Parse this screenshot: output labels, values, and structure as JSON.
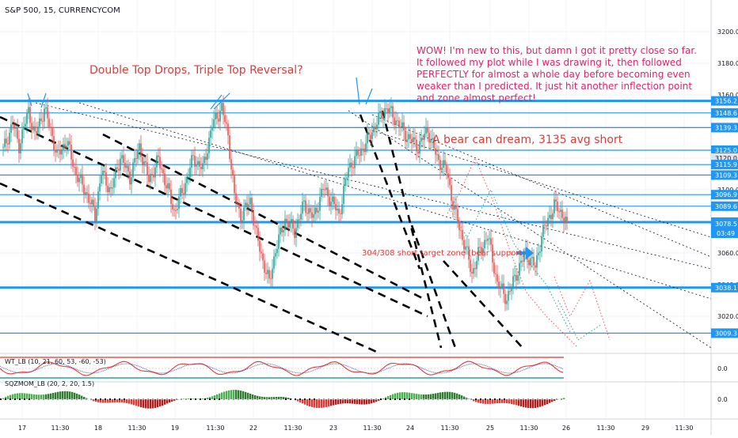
{
  "header": {
    "symbol": "S&P 500, 15, CURRENCYCOM"
  },
  "annotations": {
    "left_title": "Double Top Drops, Triple Top Reversal?",
    "right_comment_lines": [
      "WOW! I'm new to this, but damn I got it pretty close so far.",
      " It followed my plot while I was drawing it, then followed",
      "PERFECTLY for almost a whole day before becoming even",
      "weaker than I predicted. It just hit another inflection point",
      "and zone almost perfect!"
    ],
    "bear_dream": "A bear can dream, 3135 avg short",
    "target_zone": "304/308 short target zone (bear support)"
  },
  "colors": {
    "level_line": "#2196f3",
    "annotation_red": "#e53935",
    "annotation_pink": "#e91e63",
    "candle_up": "#26a69a",
    "candle_down": "#ef5350",
    "label_blue": "#2196f3",
    "label_dark": "#131722"
  },
  "chart_data": [
    {
      "type": "candlestick",
      "title": "S&P 500, 15, CURRENCYCOM",
      "ylim": [
        3005,
        3215
      ],
      "y_ticks": [
        3020.0,
        3040.0,
        3060.0,
        3080.0,
        3100.0,
        3120.0,
        3140.0,
        3160.0,
        3180.0,
        3200.0
      ],
      "x_tick_labels": [
        "17",
        "11:30",
        "18",
        "11:30",
        "19",
        "11:30",
        "22",
        "11:30",
        "23",
        "11:30",
        "24",
        "11:30",
        "25",
        "11:30",
        "26",
        "11:30",
        "29",
        "11:30"
      ],
      "horizontal_levels": [
        3156.2,
        3148.6,
        3139.3,
        3125.0,
        3115.9,
        3109.3,
        3096.9,
        3089.6,
        3079.5,
        3038.1,
        3009.3
      ],
      "thick_levels": [
        3156.2,
        3079.5,
        3038.1
      ],
      "price_label_values": [
        3156.2,
        3148.6,
        3139.3,
        3125.0,
        3120.0,
        3115.9,
        3109.3,
        3096.9,
        3089.6,
        3079.5,
        3078.5,
        3038.1,
        3009.3
      ],
      "current_price": 3079.5,
      "countdown": "03:49",
      "close_path": [
        [
          0,
          3125
        ],
        [
          6,
          3142
        ],
        [
          10,
          3128
        ],
        [
          16,
          3150
        ],
        [
          20,
          3134
        ],
        [
          26,
          3151
        ],
        [
          30,
          3138
        ],
        [
          34,
          3121
        ],
        [
          40,
          3131
        ],
        [
          46,
          3110
        ],
        [
          52,
          3099
        ],
        [
          58,
          3084
        ],
        [
          62,
          3111
        ],
        [
          68,
          3099
        ],
        [
          74,
          3121
        ],
        [
          80,
          3108
        ],
        [
          86,
          3127
        ],
        [
          92,
          3106
        ],
        [
          98,
          3119
        ],
        [
          104,
          3100
        ],
        [
          108,
          3086
        ],
        [
          114,
          3101
        ],
        [
          120,
          3120
        ],
        [
          126,
          3113
        ],
        [
          132,
          3141
        ],
        [
          138,
          3152
        ],
        [
          142,
          3134
        ],
        [
          146,
          3096
        ],
        [
          150,
          3083
        ],
        [
          156,
          3093
        ],
        [
          160,
          3071
        ],
        [
          164,
          3055
        ],
        [
          168,
          3041
        ],
        [
          172,
          3062
        ],
        [
          178,
          3081
        ],
        [
          184,
          3074
        ],
        [
          190,
          3091
        ],
        [
          196,
          3082
        ],
        [
          202,
          3101
        ],
        [
          208,
          3092
        ],
        [
          212,
          3084
        ],
        [
          218,
          3114
        ],
        [
          224,
          3122
        ],
        [
          230,
          3131
        ],
        [
          236,
          3143
        ],
        [
          242,
          3152
        ],
        [
          248,
          3144
        ],
        [
          254,
          3135
        ],
        [
          262,
          3127
        ],
        [
          268,
          3138
        ],
        [
          274,
          3120
        ],
        [
          280,
          3112
        ],
        [
          284,
          3091
        ],
        [
          288,
          3076
        ],
        [
          292,
          3063
        ],
        [
          296,
          3047
        ],
        [
          300,
          3059
        ],
        [
          306,
          3071
        ],
        [
          312,
          3041
        ],
        [
          318,
          3031
        ],
        [
          324,
          3047
        ],
        [
          330,
          3060
        ],
        [
          336,
          3051
        ],
        [
          340,
          3071
        ],
        [
          344,
          3081
        ],
        [
          348,
          3090
        ],
        [
          352,
          3086
        ],
        [
          356,
          3079
        ]
      ],
      "series": [
        {
          "name": "WT_LB (10, 21, 60, 53, -60, -53)",
          "y_ticks": [
            0.0
          ]
        },
        {
          "name": "SQZMOM_LB (20, 2, 20, 1.5)",
          "y_ticks": [
            0.0
          ]
        }
      ]
    }
  ]
}
